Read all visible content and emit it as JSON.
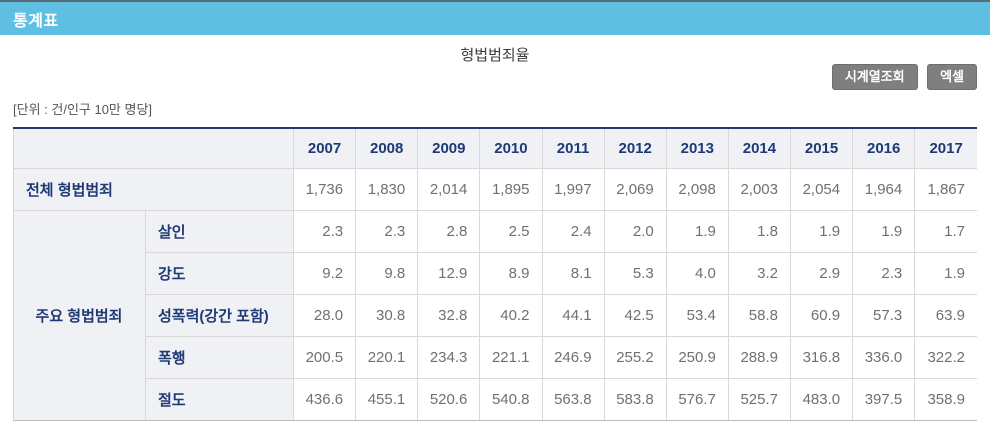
{
  "header": {
    "section_title": "통계표"
  },
  "title": "형법범죄율",
  "toolbar": {
    "timeseries_label": "시계열조회",
    "excel_label": "엑셀"
  },
  "unit_label": "[단위 : 건/인구 10만 명당]",
  "colors": {
    "header_bar": "#5ebfe3",
    "header_bar_top_line": "#5a6a74",
    "navy_text": "#1e3a74",
    "table_top_border": "#223a70",
    "label_cell_bg": "#f0f1f5",
    "button_bg": "#7f7f7f",
    "value_text": "#707070",
    "cell_border": "#d8d8d8"
  },
  "table": {
    "years": [
      "2007",
      "2008",
      "2009",
      "2010",
      "2011",
      "2012",
      "2013",
      "2014",
      "2015",
      "2016",
      "2017"
    ],
    "groups": [
      {
        "group_label": "전체 형법범죄",
        "rows": [
          {
            "label": null,
            "values": [
              "1,736",
              "1,830",
              "2,014",
              "1,895",
              "1,997",
              "2,069",
              "2,098",
              "2,003",
              "2,054",
              "1,964",
              "1,867"
            ]
          }
        ]
      },
      {
        "group_label": "주요 형법범죄",
        "rows": [
          {
            "label": "살인",
            "values": [
              "2.3",
              "2.3",
              "2.8",
              "2.5",
              "2.4",
              "2.0",
              "1.9",
              "1.8",
              "1.9",
              "1.9",
              "1.7"
            ]
          },
          {
            "label": "강도",
            "values": [
              "9.2",
              "9.8",
              "12.9",
              "8.9",
              "8.1",
              "5.3",
              "4.0",
              "3.2",
              "2.9",
              "2.3",
              "1.9"
            ]
          },
          {
            "label": "성폭력(강간 포함)",
            "values": [
              "28.0",
              "30.8",
              "32.8",
              "40.2",
              "44.1",
              "42.5",
              "53.4",
              "58.8",
              "60.9",
              "57.3",
              "63.9"
            ]
          },
          {
            "label": "폭행",
            "values": [
              "200.5",
              "220.1",
              "234.3",
              "221.1",
              "246.9",
              "255.2",
              "250.9",
              "288.9",
              "316.8",
              "336.0",
              "322.2"
            ]
          },
          {
            "label": "절도",
            "values": [
              "436.6",
              "455.1",
              "520.6",
              "540.8",
              "563.8",
              "583.8",
              "576.7",
              "525.7",
              "483.0",
              "397.5",
              "358.9"
            ]
          }
        ]
      }
    ]
  }
}
